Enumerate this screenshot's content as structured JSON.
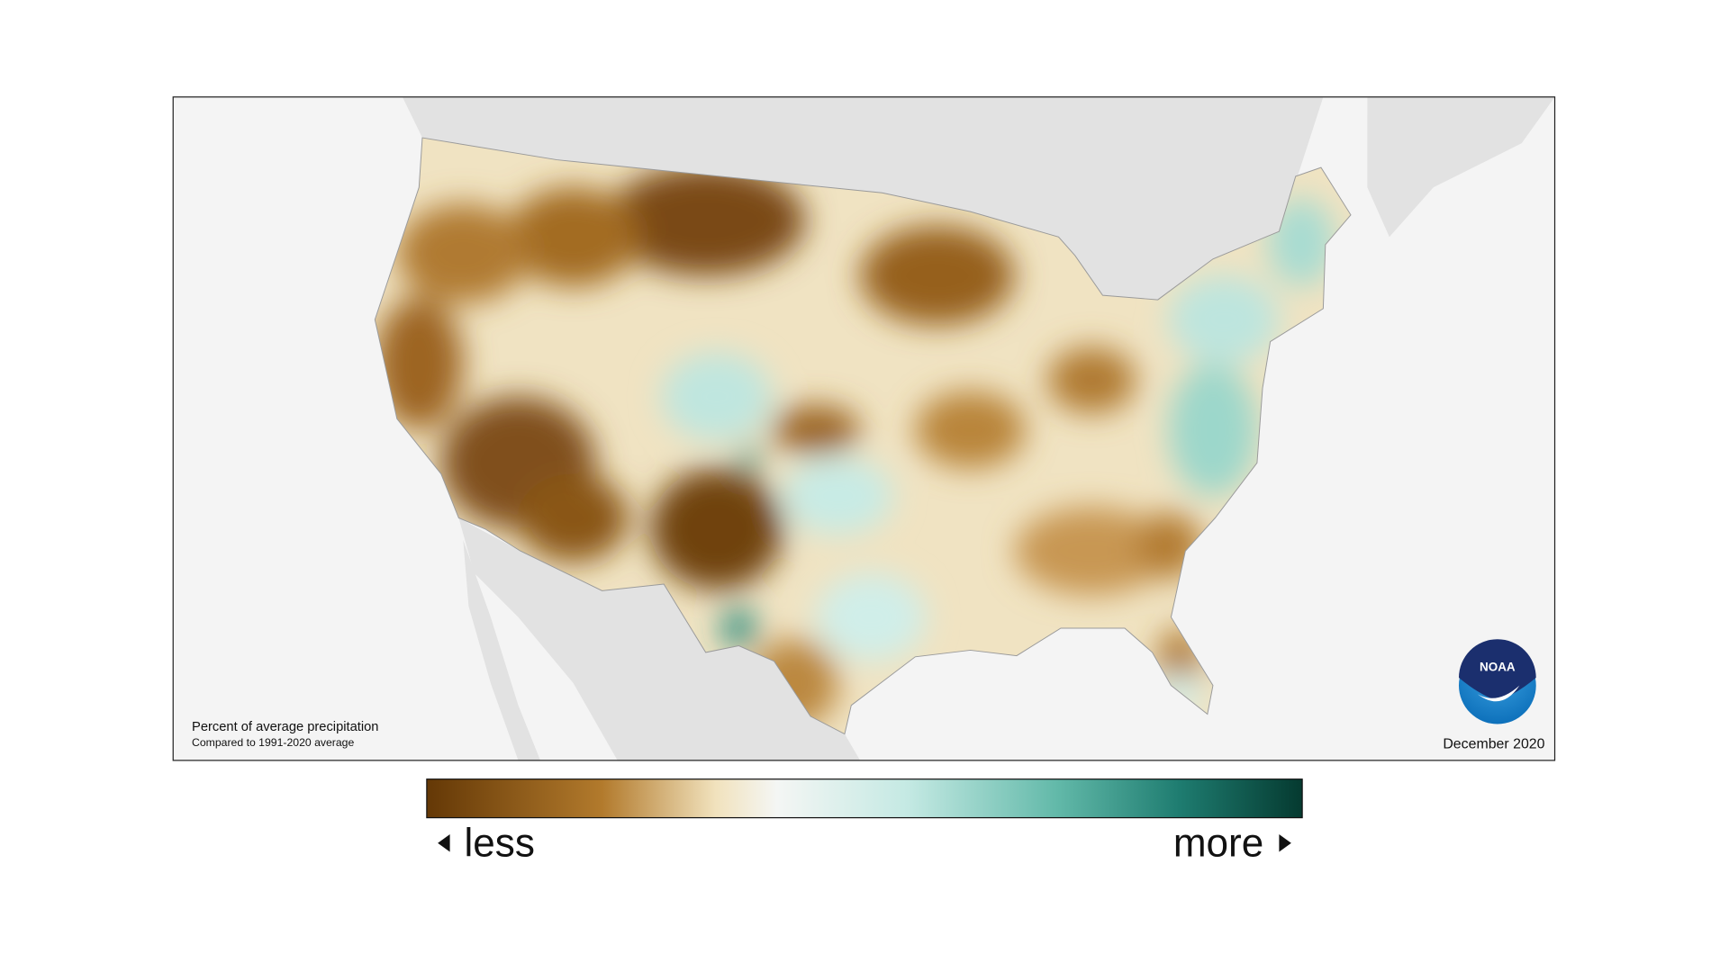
{
  "map": {
    "note_title": "Percent of average precipitation",
    "note_subtitle": "Compared to 1991-2020 average",
    "date": "December 2020",
    "logo": "NOAA",
    "legend": {
      "low_label": "less",
      "high_label": "more"
    }
  }
}
